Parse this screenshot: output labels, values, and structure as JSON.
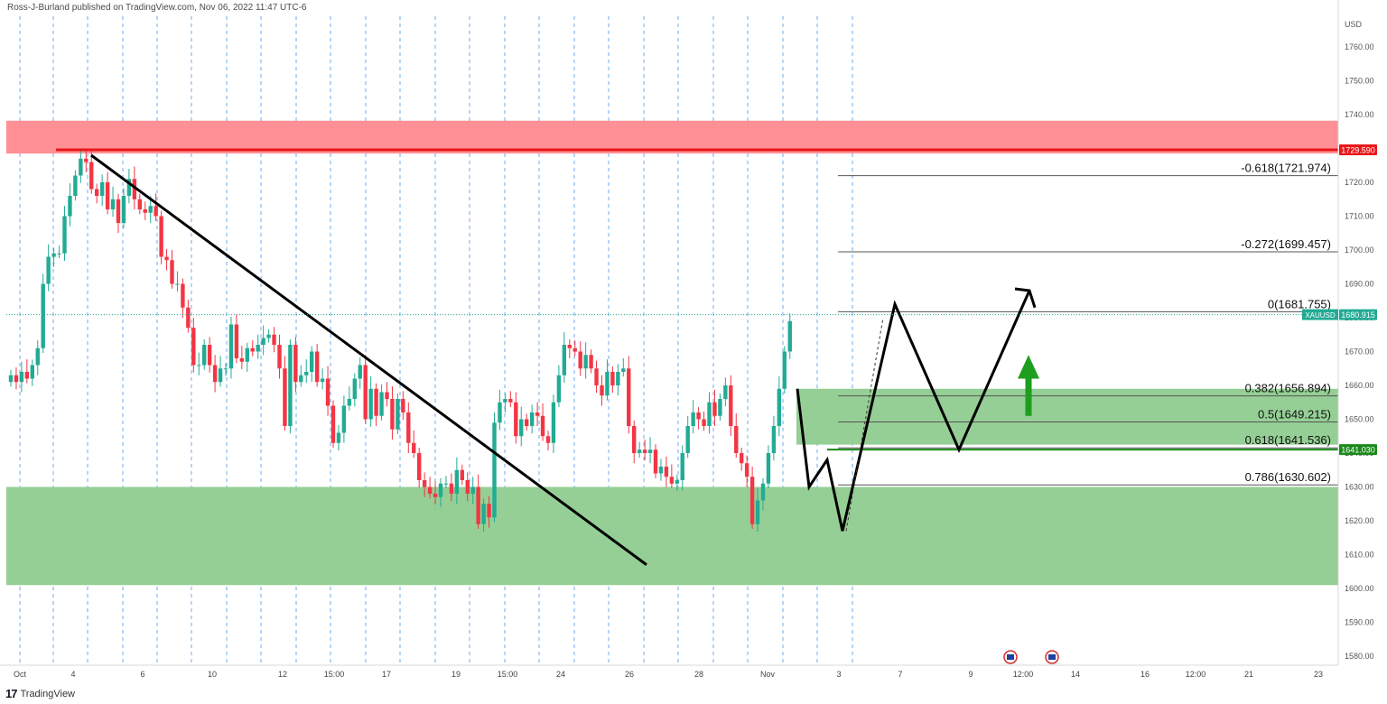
{
  "header": {
    "publisher": "Ross-J-Burland published on TradingView.com, Nov 06, 2022 11:47 UTC-6"
  },
  "footer": {
    "brand": "TradingView",
    "logo": "17"
  },
  "chart_data": {
    "type": "candlestick",
    "symbol": "XAUUSD",
    "currency": "USD",
    "ylim": [
      1575,
      1767
    ],
    "y_ticks": [
      1580,
      1590,
      1600,
      1610,
      1620,
      1630,
      1640,
      1650,
      1660,
      1670,
      1680,
      1690,
      1700,
      1710,
      1720,
      1730,
      1740,
      1750,
      1760
    ],
    "x_ticks": [
      "Oct",
      "4",
      "6",
      "10",
      "12",
      "15:00",
      "17",
      "19",
      "15:00",
      "24",
      "26",
      "28",
      "Nov",
      "3",
      "7",
      "9",
      "12:00",
      "14",
      "16",
      "12:00",
      "21",
      "23"
    ],
    "price_labels": {
      "resistance": "1729.590",
      "current": "1680.915",
      "current_symbol": "XAUUSD",
      "support": "1641.030"
    },
    "fibonacci": [
      {
        "label": "-0.618(1721.974)",
        "value": 1721.974
      },
      {
        "label": "-0.272(1699.457)",
        "value": 1699.457
      },
      {
        "label": "0(1681.755)",
        "value": 1681.755
      },
      {
        "label": "0.382(1656.894)",
        "value": 1656.894
      },
      {
        "label": "0.5(1649.215)",
        "value": 1649.215
      },
      {
        "label": "0.618(1641.536)",
        "value": 1641.536
      },
      {
        "label": "0.786(1630.602)",
        "value": 1630.602
      }
    ],
    "zones": [
      {
        "name": "resistance-zone",
        "from": 1728.5,
        "to": 1738.2,
        "color": "#ff8a90"
      },
      {
        "name": "upper-support-zone",
        "from": 1642.5,
        "to": 1659.0,
        "color": "#8fcc8f"
      },
      {
        "name": "lower-support-zone",
        "from": 1601.0,
        "to": 1630.0,
        "color": "#8fcc8f"
      }
    ],
    "colors": {
      "up": "#22ab94",
      "down": "#f23645",
      "resistance_line": "#e8181b",
      "support_line": "#1a8a1a",
      "arrow": "#1e9e1e"
    }
  }
}
